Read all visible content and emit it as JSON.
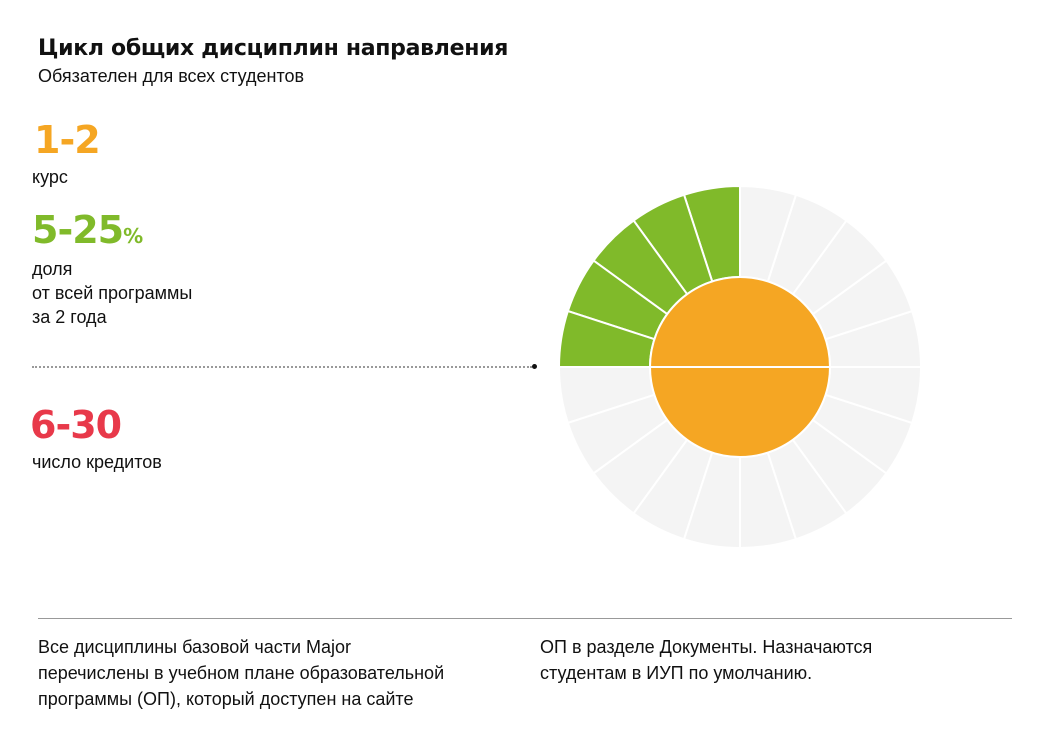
{
  "header": {
    "title": "Цикл общих дисциплин направления",
    "subtitle": "Обязателен для всех студентов"
  },
  "stats": [
    {
      "value": "1-2",
      "unit": "",
      "label_lines": [
        "курс"
      ],
      "color": "#F5A623"
    },
    {
      "value": "5-25",
      "unit": "%",
      "label_lines": [
        "доля",
        "от всей программы",
        "за 2 года"
      ],
      "color": "#80BA2A"
    },
    {
      "value": "6-30",
      "unit": "",
      "label_lines": [
        "число кредитов"
      ],
      "color": "#E8394A"
    }
  ],
  "chart_data": {
    "type": "pie",
    "outer_segments_total": 20,
    "outer_segments_highlighted": 5,
    "highlighted_color": "#80BA2A",
    "empty_color": "#F4F4F4",
    "inner_halves": 2,
    "inner_color": "#F5A623"
  },
  "footer": {
    "col1": [
      "Все дисциплины базовой части Major",
      "перечислены в учебном плане образовательной",
      "программы (ОП), который  доступен на сайте"
    ],
    "col2": [
      "ОП в разделе Документы. Назначаются",
      "студентам в ИУП по умолчанию."
    ]
  }
}
